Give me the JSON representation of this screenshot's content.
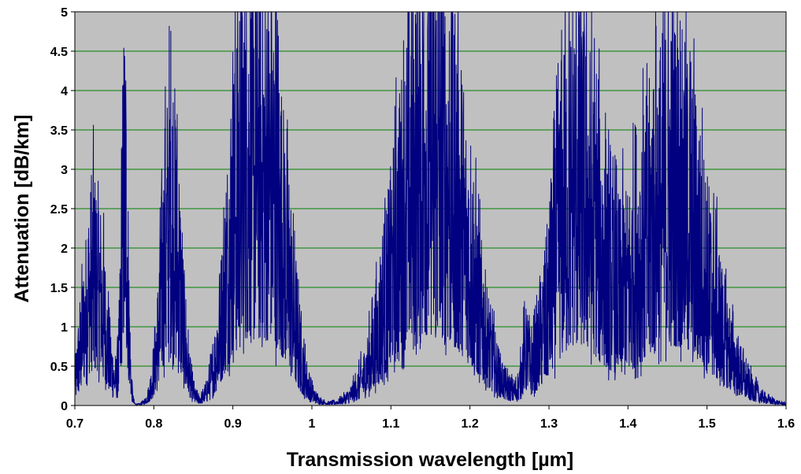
{
  "chart_data": {
    "type": "line",
    "title": "",
    "xlabel": "Transmission wavelength [µm]",
    "ylabel": "Attenuation [dB/km]",
    "xlim": [
      0.7,
      1.6
    ],
    "ylim": [
      0,
      5
    ],
    "x_ticks": [
      "0.7",
      "0.8",
      "0.9",
      "1",
      "1.1",
      "1.2",
      "1.3",
      "1.4",
      "1.5",
      "1.6"
    ],
    "y_ticks": [
      "0",
      "0.5",
      "1",
      "1.5",
      "2",
      "2.5",
      "3",
      "3.5",
      "4",
      "4.5",
      "5"
    ],
    "grid": "horizontal",
    "legend": "none",
    "colors": {
      "plot_background": "#c0c0c0",
      "gridline": "#008000",
      "series": "#000080"
    },
    "series": [
      {
        "absorption_bands": [
          {
            "center": 0.725,
            "width": 0.014,
            "peak": 3.0
          },
          {
            "center": 0.763,
            "width": 0.004,
            "peak": 5.0
          },
          {
            "center": 0.822,
            "width": 0.012,
            "peak": 4.4
          },
          {
            "center": 0.908,
            "width": 0.018,
            "peak": 4.3
          },
          {
            "center": 0.948,
            "width": 0.022,
            "peak": 5.0
          },
          {
            "center": 1.135,
            "width": 0.035,
            "peak": 5.0
          },
          {
            "center": 1.185,
            "width": 0.03,
            "peak": 2.8
          },
          {
            "center": 1.27,
            "width": 0.004,
            "peak": 0.7
          },
          {
            "center": 1.335,
            "width": 0.03,
            "peak": 5.0
          },
          {
            "center": 1.455,
            "width": 0.045,
            "peak": 5.0
          }
        ]
      }
    ]
  }
}
